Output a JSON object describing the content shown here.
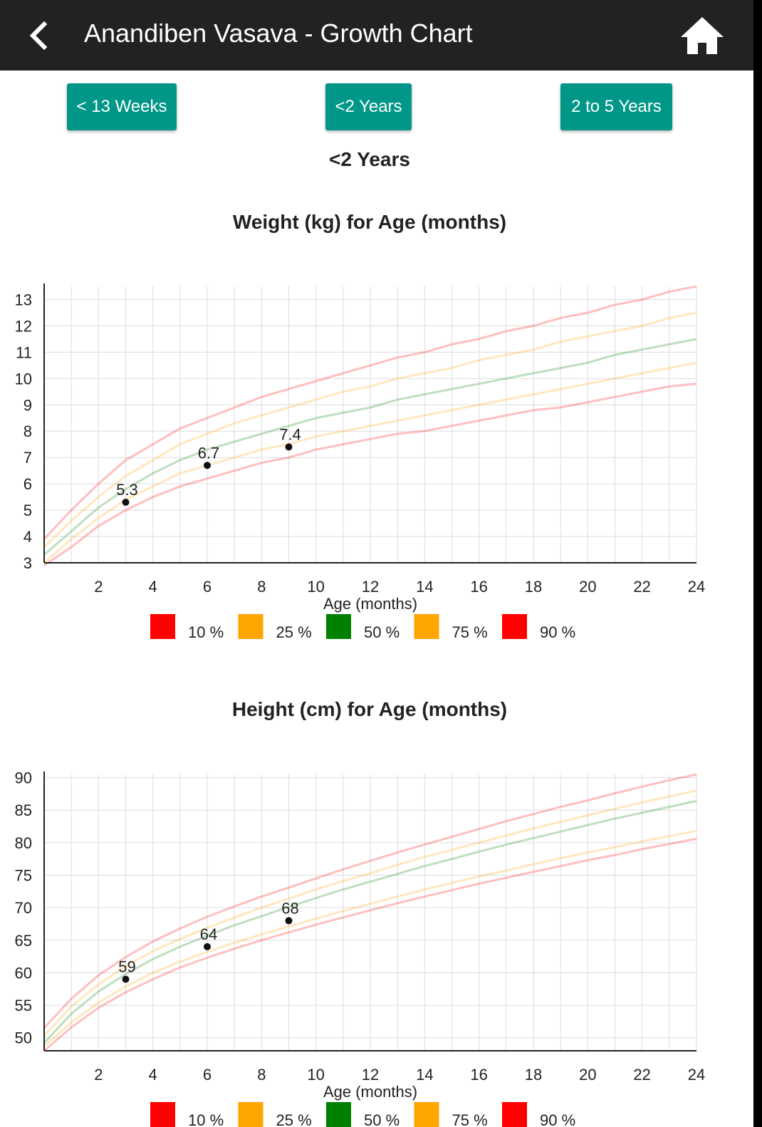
{
  "header": {
    "title": "Anandiben Vasava - Growth Chart",
    "back_icon": "chevron-left-icon",
    "home_icon": "home-icon",
    "background_color": "#222222"
  },
  "range_buttons": [
    {
      "label": "< 13 Weeks"
    },
    {
      "label": "<2 Years"
    },
    {
      "label": "2 to 5 Years"
    }
  ],
  "accent_color": "#009688",
  "range_title": "<2 Years",
  "chart_data": [
    {
      "type": "line",
      "title": "Weight (kg) for Age (months)",
      "xlabel": "Age (months)",
      "ylabel": "",
      "xlim": [
        0,
        24
      ],
      "ylim": [
        3,
        13.5
      ],
      "x_ticks": [
        2,
        4,
        6,
        8,
        10,
        12,
        14,
        16,
        18,
        20,
        22,
        24
      ],
      "y_ticks": [
        3,
        4,
        5,
        6,
        7,
        8,
        9,
        10,
        11,
        12,
        13
      ],
      "grid": true,
      "legend_position": "bottom",
      "x": [
        0,
        1,
        2,
        3,
        4,
        5,
        6,
        7,
        8,
        9,
        10,
        11,
        12,
        13,
        14,
        15,
        16,
        17,
        18,
        19,
        20,
        21,
        22,
        23,
        24
      ],
      "series": [
        {
          "name": "10 %",
          "color": "#ff0000",
          "values": [
            2.9,
            3.6,
            4.4,
            5.0,
            5.5,
            5.9,
            6.2,
            6.5,
            6.8,
            7.0,
            7.3,
            7.5,
            7.7,
            7.9,
            8.0,
            8.2,
            8.4,
            8.6,
            8.8,
            8.9,
            9.1,
            9.3,
            9.5,
            9.7,
            9.8
          ]
        },
        {
          "name": "25 %",
          "color": "#ffa500",
          "values": [
            3.0,
            3.9,
            4.7,
            5.4,
            5.9,
            6.4,
            6.7,
            7.0,
            7.3,
            7.5,
            7.8,
            8.0,
            8.2,
            8.4,
            8.6,
            8.8,
            9.0,
            9.2,
            9.4,
            9.6,
            9.8,
            10.0,
            10.2,
            10.4,
            10.6
          ]
        },
        {
          "name": "50 %",
          "color": "#008000",
          "values": [
            3.3,
            4.2,
            5.1,
            5.8,
            6.4,
            6.9,
            7.3,
            7.6,
            7.9,
            8.2,
            8.5,
            8.7,
            8.9,
            9.2,
            9.4,
            9.6,
            9.8,
            10.0,
            10.2,
            10.4,
            10.6,
            10.9,
            11.1,
            11.3,
            11.5
          ]
        },
        {
          "name": "75 %",
          "color": "#ffa500",
          "values": [
            3.6,
            4.6,
            5.5,
            6.3,
            6.9,
            7.5,
            7.9,
            8.3,
            8.6,
            8.9,
            9.2,
            9.5,
            9.7,
            10.0,
            10.2,
            10.4,
            10.7,
            10.9,
            11.1,
            11.4,
            11.6,
            11.8,
            12.0,
            12.3,
            12.5
          ]
        },
        {
          "name": "90 %",
          "color": "#ff0000",
          "values": [
            3.9,
            5.0,
            6.0,
            6.9,
            7.5,
            8.1,
            8.5,
            8.9,
            9.3,
            9.6,
            9.9,
            10.2,
            10.5,
            10.8,
            11.0,
            11.3,
            11.5,
            11.8,
            12.0,
            12.3,
            12.5,
            12.8,
            13.0,
            13.3,
            13.5
          ]
        }
      ],
      "points": [
        {
          "x": 3,
          "y": 5.3,
          "label": "5.3"
        },
        {
          "x": 6,
          "y": 6.7,
          "label": "6.7"
        },
        {
          "x": 9,
          "y": 7.4,
          "label": "7.4"
        }
      ]
    },
    {
      "type": "line",
      "title": "Height (cm) for Age (months)",
      "xlabel": "Age (months)",
      "ylabel": "",
      "xlim": [
        0,
        24
      ],
      "ylim": [
        48,
        90.5
      ],
      "x_ticks": [
        2,
        4,
        6,
        8,
        10,
        12,
        14,
        16,
        18,
        20,
        22,
        24
      ],
      "y_ticks": [
        50,
        55,
        60,
        65,
        70,
        75,
        80,
        85,
        90
      ],
      "grid": true,
      "legend_position": "bottom",
      "x": [
        0,
        1,
        2,
        3,
        4,
        5,
        6,
        7,
        8,
        9,
        10,
        11,
        12,
        13,
        14,
        15,
        16,
        17,
        18,
        19,
        20,
        21,
        22,
        23,
        24
      ],
      "series": [
        {
          "name": "10 %",
          "color": "#ff0000",
          "values": [
            48.0,
            51.6,
            54.6,
            57.0,
            59.0,
            60.8,
            62.3,
            63.7,
            65.0,
            66.2,
            67.4,
            68.5,
            69.6,
            70.7,
            71.7,
            72.7,
            73.7,
            74.6,
            75.5,
            76.4,
            77.3,
            78.1,
            79.0,
            79.8,
            80.6
          ]
        },
        {
          "name": "25 %",
          "color": "#ffa500",
          "values": [
            48.7,
            52.4,
            55.4,
            57.9,
            60.0,
            61.7,
            63.2,
            64.6,
            65.9,
            67.1,
            68.3,
            69.5,
            70.6,
            71.7,
            72.8,
            73.8,
            74.8,
            75.7,
            76.7,
            77.6,
            78.5,
            79.3,
            80.2,
            81.0,
            81.8
          ]
        },
        {
          "name": "50 %",
          "color": "#008000",
          "values": [
            49.2,
            53.7,
            57.1,
            59.8,
            62.1,
            64.0,
            65.7,
            67.3,
            68.7,
            70.1,
            71.5,
            72.8,
            74.0,
            75.2,
            76.4,
            77.5,
            78.6,
            79.7,
            80.7,
            81.7,
            82.7,
            83.7,
            84.6,
            85.5,
            86.4
          ]
        },
        {
          "name": "75 %",
          "color": "#ffa500",
          "values": [
            50.3,
            54.8,
            58.2,
            61.0,
            63.3,
            65.2,
            66.9,
            68.5,
            70.0,
            71.4,
            72.8,
            74.1,
            75.3,
            76.6,
            77.8,
            78.9,
            80.0,
            81.1,
            82.2,
            83.2,
            84.2,
            85.2,
            86.2,
            87.1,
            88.0
          ]
        },
        {
          "name": "90 %",
          "color": "#ff0000",
          "values": [
            51.5,
            56.0,
            59.6,
            62.4,
            64.8,
            66.8,
            68.6,
            70.2,
            71.7,
            73.1,
            74.5,
            75.9,
            77.2,
            78.5,
            79.7,
            80.9,
            82.1,
            83.3,
            84.4,
            85.5,
            86.5,
            87.6,
            88.6,
            89.6,
            90.5
          ]
        }
      ],
      "points": [
        {
          "x": 3,
          "y": 59,
          "label": "59"
        },
        {
          "x": 6,
          "y": 64,
          "label": "64"
        },
        {
          "x": 9,
          "y": 68,
          "label": "68"
        }
      ]
    }
  ]
}
